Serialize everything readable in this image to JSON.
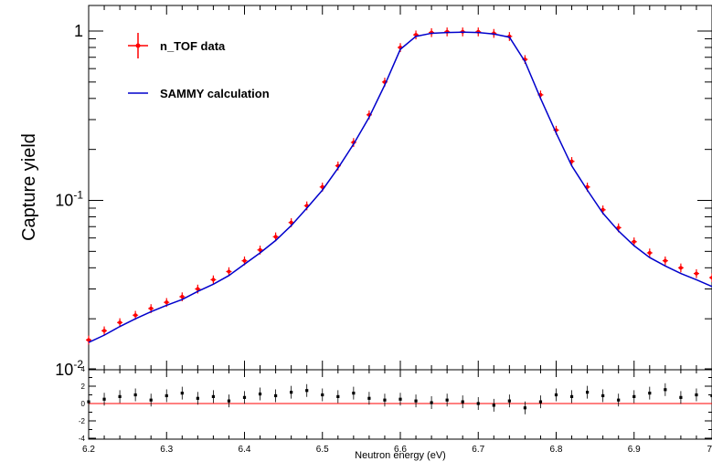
{
  "chart_data": [
    {
      "type": "scatter",
      "title": "",
      "ylabel": "Capture yield",
      "xlabel": "",
      "xlim": [
        6.2,
        7.0
      ],
      "ylim": [
        0.01,
        1.2
      ],
      "yscale": "log",
      "y_ticks": [
        {
          "value": 1,
          "base": "1",
          "exp": ""
        },
        {
          "value": 0.1,
          "base": "10",
          "exp": "-1"
        },
        {
          "value": 0.01,
          "base": "10",
          "exp": "-2"
        }
      ],
      "legend": {
        "placement": "top-left",
        "entries": [
          {
            "label": "n_TOF data",
            "color": "#ff0000",
            "style": "errorbar-points"
          },
          {
            "label": "SAMMY calculation",
            "color": "#0000cc",
            "style": "line"
          }
        ]
      },
      "series": [
        {
          "name": "n_TOF data",
          "color": "#ff0000",
          "x": [
            6.2,
            6.22,
            6.24,
            6.26,
            6.28,
            6.3,
            6.32,
            6.34,
            6.36,
            6.38,
            6.4,
            6.42,
            6.44,
            6.46,
            6.48,
            6.5,
            6.52,
            6.54,
            6.56,
            6.58,
            6.6,
            6.62,
            6.64,
            6.66,
            6.68,
            6.7,
            6.72,
            6.74,
            6.76,
            6.78,
            6.8,
            6.82,
            6.84,
            6.86,
            6.88,
            6.9,
            6.92,
            6.94,
            6.96,
            6.98,
            7.0
          ],
          "y": [
            0.015,
            0.017,
            0.019,
            0.021,
            0.023,
            0.025,
            0.027,
            0.03,
            0.034,
            0.038,
            0.044,
            0.051,
            0.061,
            0.074,
            0.093,
            0.12,
            0.16,
            0.22,
            0.32,
            0.5,
            0.8,
            0.95,
            0.98,
            0.99,
            0.99,
            0.99,
            0.97,
            0.93,
            0.68,
            0.42,
            0.26,
            0.17,
            0.12,
            0.088,
            0.069,
            0.057,
            0.049,
            0.044,
            0.04,
            0.037,
            0.035
          ]
        },
        {
          "name": "SAMMY calculation",
          "color": "#0000cc",
          "x": [
            6.2,
            6.22,
            6.24,
            6.26,
            6.28,
            6.3,
            6.32,
            6.34,
            6.36,
            6.38,
            6.4,
            6.42,
            6.44,
            6.46,
            6.48,
            6.5,
            6.52,
            6.54,
            6.56,
            6.58,
            6.6,
            6.62,
            6.64,
            6.66,
            6.68,
            6.7,
            6.72,
            6.74,
            6.76,
            6.78,
            6.8,
            6.82,
            6.84,
            6.86,
            6.88,
            6.9,
            6.92,
            6.94,
            6.96,
            6.98,
            7.0
          ],
          "y": [
            0.0145,
            0.016,
            0.018,
            0.02,
            0.022,
            0.024,
            0.026,
            0.029,
            0.032,
            0.036,
            0.042,
            0.049,
            0.058,
            0.071,
            0.09,
            0.115,
            0.155,
            0.215,
            0.31,
            0.48,
            0.78,
            0.93,
            0.97,
            0.98,
            0.985,
            0.98,
            0.96,
            0.92,
            0.66,
            0.4,
            0.25,
            0.16,
            0.115,
            0.084,
            0.066,
            0.054,
            0.046,
            0.041,
            0.037,
            0.034,
            0.031
          ]
        }
      ]
    },
    {
      "type": "scatter",
      "title": "",
      "xlabel": "Neutron energy  (eV)",
      "ylabel": "",
      "xlim": [
        6.2,
        7.0
      ],
      "ylim": [
        -5,
        5
      ],
      "x_ticks": [
        "6.2",
        "6.3",
        "6.4",
        "6.5",
        "6.6",
        "6.7",
        "6.8",
        "6.9",
        "7"
      ],
      "y_ticks": [
        "4",
        "2",
        "0",
        "-2",
        "-4"
      ],
      "reference_line": {
        "y": 0,
        "color": "#ff0000"
      },
      "series": [
        {
          "name": "",
          "color": "#000000",
          "x": [
            6.2,
            6.22,
            6.24,
            6.26,
            6.28,
            6.3,
            6.32,
            6.34,
            6.36,
            6.38,
            6.4,
            6.42,
            6.44,
            6.46,
            6.48,
            6.5,
            6.52,
            6.54,
            6.56,
            6.58,
            6.6,
            6.62,
            6.64,
            6.66,
            6.68,
            6.7,
            6.72,
            6.74,
            6.76,
            6.78,
            6.8,
            6.82,
            6.84,
            6.86,
            6.88,
            6.9,
            6.92,
            6.94,
            6.96,
            6.98,
            7.0
          ],
          "y": [
            0.2,
            0.5,
            0.8,
            1.0,
            0.4,
            0.9,
            1.2,
            0.6,
            0.8,
            0.3,
            0.7,
            1.1,
            0.9,
            1.3,
            1.5,
            1.0,
            0.8,
            1.2,
            0.6,
            0.4,
            0.5,
            0.3,
            0.1,
            0.4,
            0.2,
            0.0,
            -0.2,
            0.3,
            -0.5,
            0.2,
            1.0,
            0.8,
            1.3,
            0.9,
            0.4,
            0.8,
            1.2,
            1.6,
            0.7,
            1.0,
            0.9
          ]
        }
      ]
    }
  ]
}
